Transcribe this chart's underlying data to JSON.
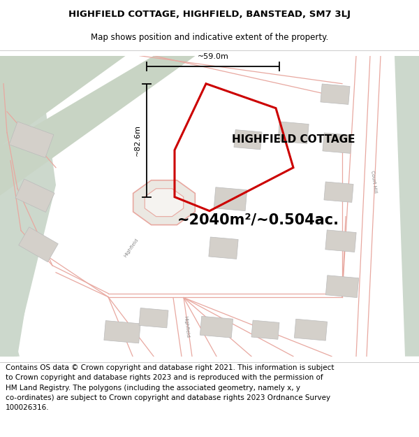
{
  "title_line1": "HIGHFIELD COTTAGE, HIGHFIELD, BANSTEAD, SM7 3LJ",
  "title_line2": "Map shows position and indicative extent of the property.",
  "property_label": "HIGHFIELD COTTAGE",
  "area_label": "~2040m²/~0.504ac.",
  "dim_width": "~59.0m",
  "dim_height": "~82.6m",
  "footer": "Contains OS data © Crown copyright and database right 2021. This information is subject\nto Crown copyright and database rights 2023 and is reproduced with the permission of\nHM Land Registry. The polygons (including the associated geometry, namely x, y\nco-ordinates) are subject to Crown copyright and database rights 2023 Ordnance Survey\n100026316.",
  "map_bg": "#ffffff",
  "green_left": "#ccd8cc",
  "green_right": "#ccd8cc",
  "plot_line_color": "#e8a8a0",
  "property_color": "#cc0000",
  "building_fill": "#d4d0ca",
  "building_edge": "#bbbbbb",
  "road_fill": "#f0eeea",
  "white_bg": "#ffffff",
  "title_fontsize": 9.5,
  "subtitle_fontsize": 8.5,
  "area_fontsize": 15,
  "prop_label_fontsize": 11,
  "dim_fontsize": 8,
  "footer_fontsize": 7.5,
  "road_label_fontsize": 5
}
